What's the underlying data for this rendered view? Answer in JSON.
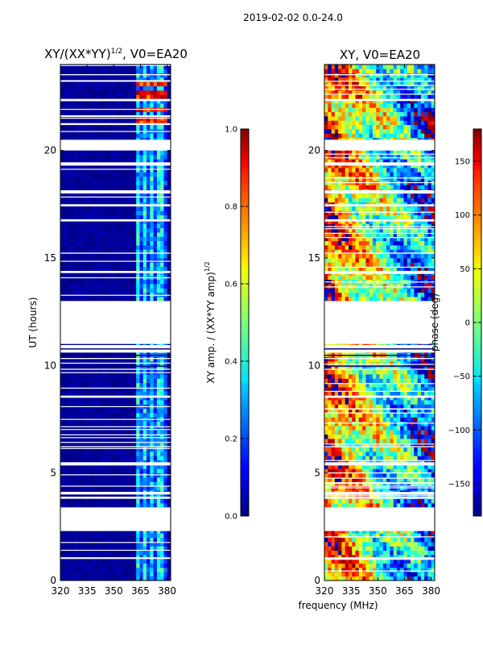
{
  "suptitle": "2019-02-02 0.0-24.0",
  "shared_xlabel": "frequency (MHz)",
  "chart_data": [
    {
      "type": "heatmap",
      "title_main": "XY/(XX*YY)",
      "title_exp": "1/2",
      "title_suffix": ", V0=EA20",
      "xlabel": "",
      "ylabel": "UT (hours)",
      "xlim": [
        320,
        382
      ],
      "ylim": [
        0,
        24
      ],
      "xticks": [
        320,
        335,
        350,
        365,
        380
      ],
      "yticks": [
        0,
        5,
        10,
        15,
        20
      ],
      "colormap": "jet",
      "colorbar": {
        "label_main": "XY amp. / (XX*YY amp)",
        "label_exp": "1/2",
        "range": [
          0.0,
          1.0
        ],
        "ticks": [
          "0.0",
          "0.2",
          "0.4",
          "0.6",
          "0.8",
          "1.0"
        ],
        "tick_values": [
          0.0,
          0.2,
          0.4,
          0.6,
          0.8,
          1.0
        ]
      },
      "bright_channel_band_MHz": [
        362,
        381
      ],
      "bright_band_level": 0.35,
      "background_level": 0.0,
      "strong_rfi_hours": [
        21.4,
        21.9,
        22.6,
        23.1
      ],
      "strong_rfi_level": 0.9
    },
    {
      "type": "heatmap",
      "title_main": "XY, V0=EA20",
      "xlabel": "frequency (MHz)",
      "ylabel": "",
      "xlim": [
        320,
        382
      ],
      "ylim": [
        0,
        24
      ],
      "xticks": [
        320,
        335,
        350,
        365,
        380
      ],
      "yticks": [
        0,
        5,
        10,
        15,
        20
      ],
      "colormap": "jet",
      "colorbar": {
        "label_main": "phase (deg)",
        "range": [
          -180,
          180
        ],
        "ticks": [
          "−150",
          "−100",
          "−50",
          "0",
          "50",
          "100",
          "150"
        ],
        "tick_values": [
          -150,
          -100,
          -50,
          0,
          50,
          100,
          150
        ]
      },
      "phase_gradient_deg": [
        120,
        -120
      ]
    }
  ],
  "flagged_gaps_hours": [
    [
      2.3,
      3.4
    ],
    [
      11.0,
      13.0
    ],
    [
      20.0,
      20.5
    ],
    [
      18.0,
      18.15
    ],
    [
      19.3,
      19.45
    ],
    [
      4.0,
      4.12
    ],
    [
      5.35,
      5.5
    ],
    [
      8.5,
      8.6
    ],
    [
      1.0,
      1.08
    ],
    [
      14.3,
      14.4
    ],
    [
      16.7,
      16.8
    ],
    [
      22.3,
      22.4
    ],
    [
      23.5,
      23.55
    ],
    [
      9.8,
      9.85
    ],
    [
      10.3,
      10.35
    ],
    [
      10.6,
      10.95
    ],
    [
      3.8,
      3.9
    ],
    [
      6.2,
      6.25
    ],
    [
      15.2,
      15.25
    ],
    [
      17.4,
      17.5
    ]
  ],
  "partial_rows_hours": [
    10.0,
    10.5,
    10.8
  ]
}
